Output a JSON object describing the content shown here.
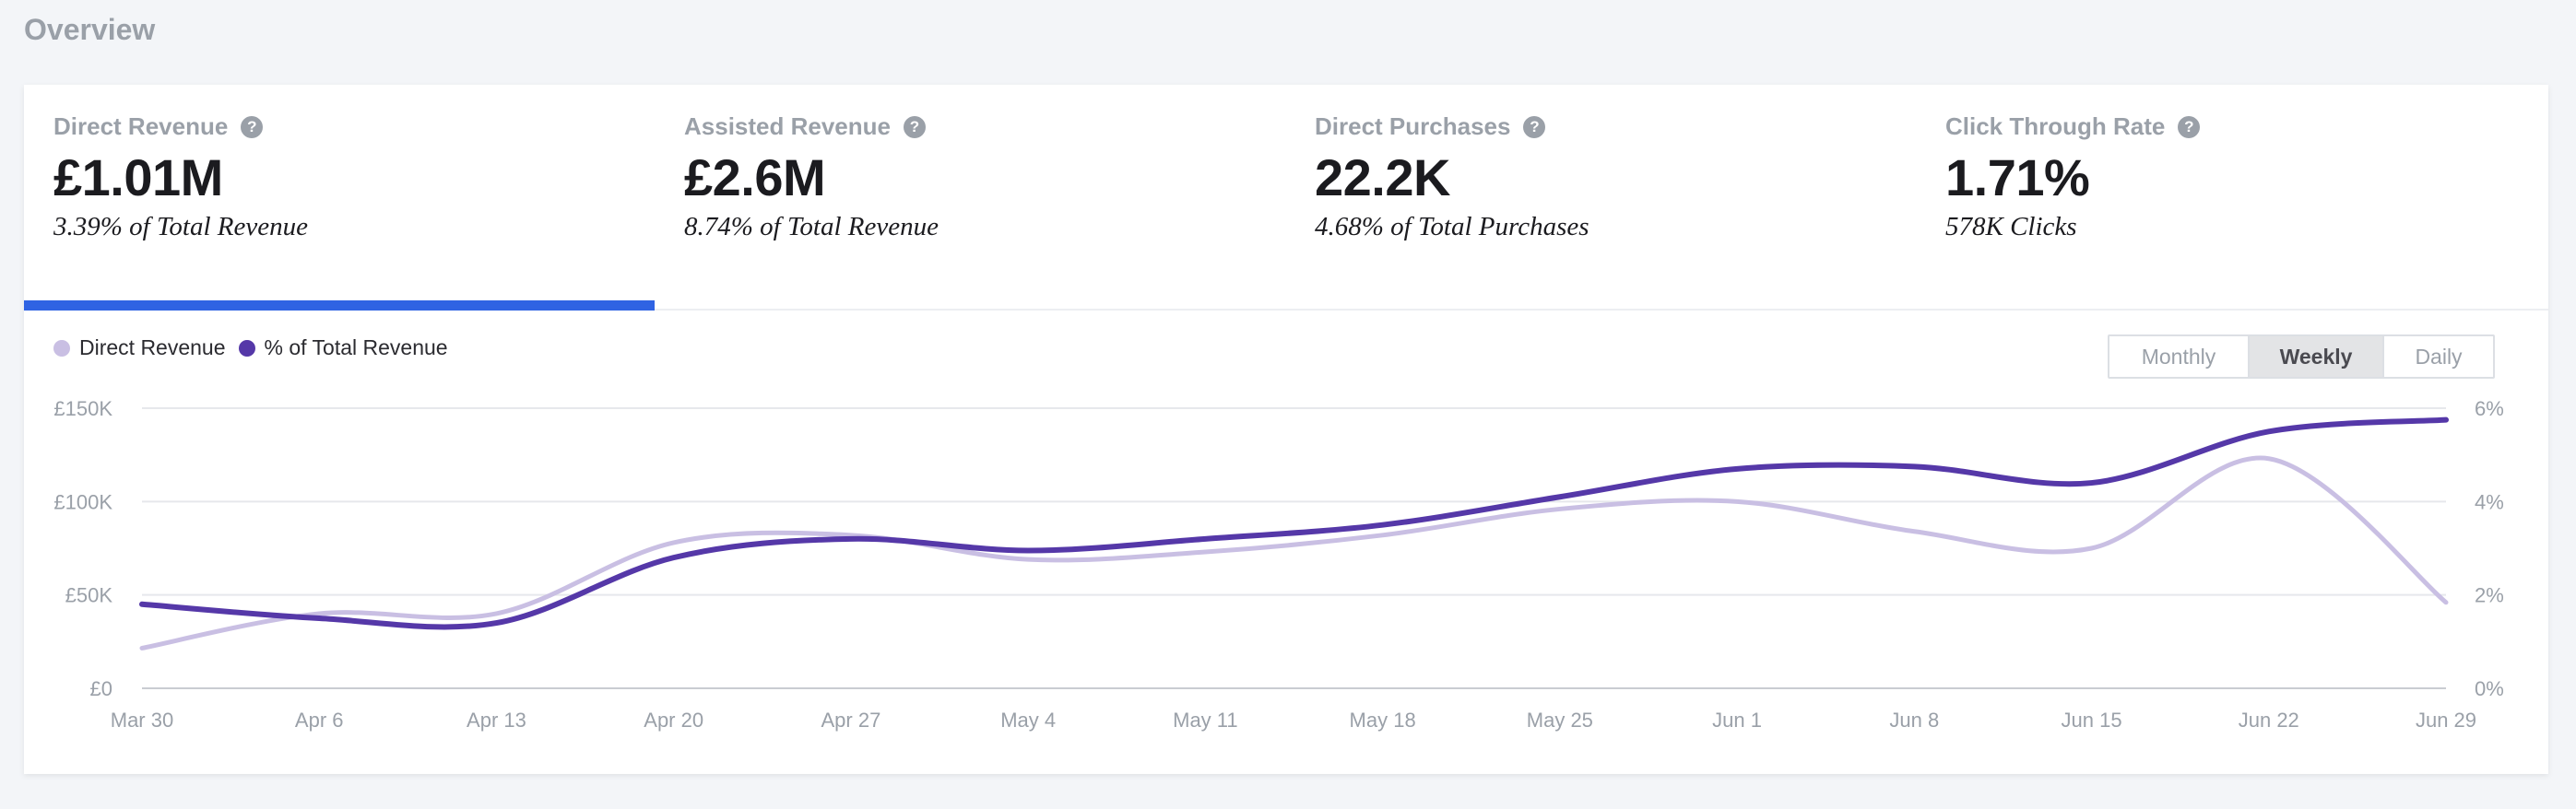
{
  "page": {
    "title": "Overview"
  },
  "metrics": [
    {
      "label": "Direct Revenue",
      "value": "£1.01M",
      "sub": "3.39% of Total Revenue",
      "active": true
    },
    {
      "label": "Assisted Revenue",
      "value": "£2.6M",
      "sub": "8.74% of Total Revenue",
      "active": false
    },
    {
      "label": "Direct Purchases",
      "value": "22.2K",
      "sub": "4.68% of Total Purchases",
      "active": false
    },
    {
      "label": "Click Through Rate",
      "value": "1.71%",
      "sub": "578K Clicks",
      "active": false
    }
  ],
  "help_icon_glyph": "?",
  "toggle": {
    "monthly": "Monthly",
    "weekly": "Weekly",
    "daily": "Daily",
    "selected": "Weekly"
  },
  "colors": {
    "accent": "#2f63e3",
    "revenue": "#c9bfe3",
    "pct": "#5538a8"
  },
  "chart_data": {
    "type": "line",
    "title": "",
    "xlabel": "",
    "ylabel": "",
    "legend_position": "top-left",
    "grid": true,
    "categories": [
      "Mar 30",
      "Apr 6",
      "Apr 13",
      "Apr 20",
      "Apr 27",
      "May 4",
      "May 11",
      "May 18",
      "May 25",
      "Jun 1",
      "Jun 8",
      "Jun 15",
      "Jun 22",
      "Jun 29"
    ],
    "y_left": {
      "ticks": [
        "£0",
        "£50K",
        "£100K",
        "£150K"
      ],
      "ylim": [
        0,
        150000
      ]
    },
    "y_right": {
      "ticks": [
        "0%",
        "2%",
        "4%",
        "6%"
      ],
      "ylim": [
        0,
        6
      ]
    },
    "series": [
      {
        "name": "Direct Revenue",
        "axis": "left",
        "color": "#c9bfe3",
        "values": [
          21500,
          40000,
          40000,
          78000,
          82000,
          69000,
          73000,
          82000,
          96000,
          100000,
          84000,
          75000,
          123000,
          46000
        ]
      },
      {
        "name": "% of Total Revenue",
        "axis": "right",
        "color": "#5538a8",
        "values": [
          1.8,
          1.5,
          1.4,
          2.8,
          3.2,
          2.95,
          3.2,
          3.5,
          4.1,
          4.7,
          4.75,
          4.4,
          5.5,
          5.75
        ]
      }
    ]
  }
}
